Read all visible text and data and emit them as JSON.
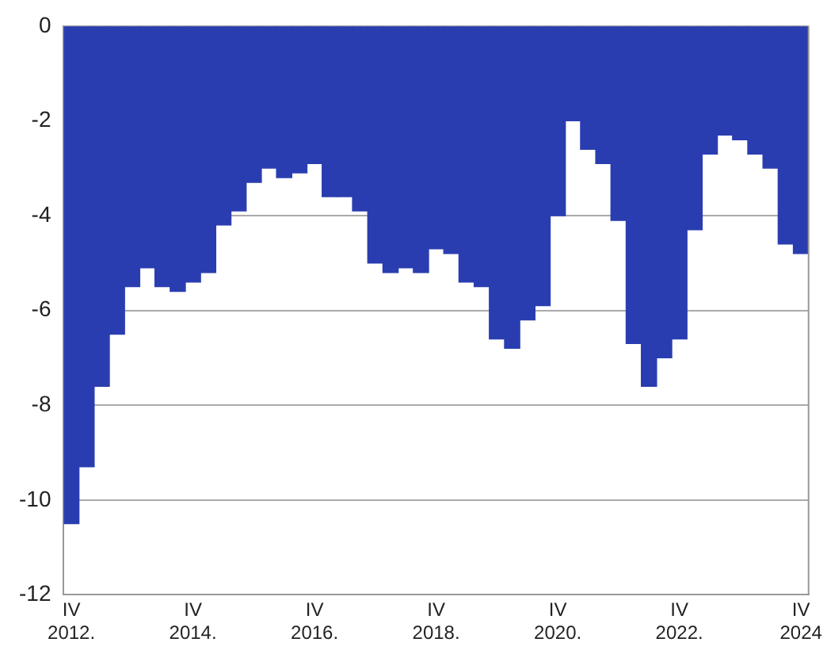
{
  "chart_data": {
    "type": "bar",
    "categories": [
      "IV\n2012.",
      null,
      null,
      null,
      null,
      null,
      null,
      null,
      "IV\n2014.",
      null,
      null,
      null,
      null,
      null,
      null,
      null,
      "IV\n2016.",
      null,
      null,
      null,
      null,
      null,
      null,
      null,
      "IV\n2018.",
      null,
      null,
      null,
      null,
      null,
      null,
      null,
      "IV\n2020.",
      null,
      null,
      null,
      null,
      null,
      null,
      null,
      "IV\n2022.",
      null,
      null,
      null,
      null,
      null,
      null,
      null,
      "IV\n2024"
    ],
    "values": [
      -10.5,
      -9.3,
      -7.6,
      -6.5,
      -5.5,
      -5.1,
      -5.5,
      -5.6,
      -5.4,
      -5.2,
      -4.2,
      -3.9,
      -3.3,
      -3.0,
      -3.2,
      -3.1,
      -2.9,
      -3.6,
      -3.6,
      -3.9,
      -5.0,
      -5.2,
      -5.1,
      -5.2,
      -4.7,
      -4.8,
      -5.4,
      -5.5,
      -6.6,
      -6.8,
      -6.2,
      -5.9,
      -4.0,
      -2.0,
      -2.6,
      -2.9,
      -4.1,
      -6.7,
      -7.6,
      -7.0,
      -6.6,
      -4.3,
      -2.7,
      -2.3,
      -2.4,
      -2.7,
      -3.0,
      -4.6,
      -4.8
    ],
    "color": "#2a3db0",
    "ylim": [
      -12,
      0
    ],
    "yticks": [
      0,
      -2,
      -4,
      -6,
      -8,
      -10,
      -12
    ],
    "grid": "y"
  }
}
